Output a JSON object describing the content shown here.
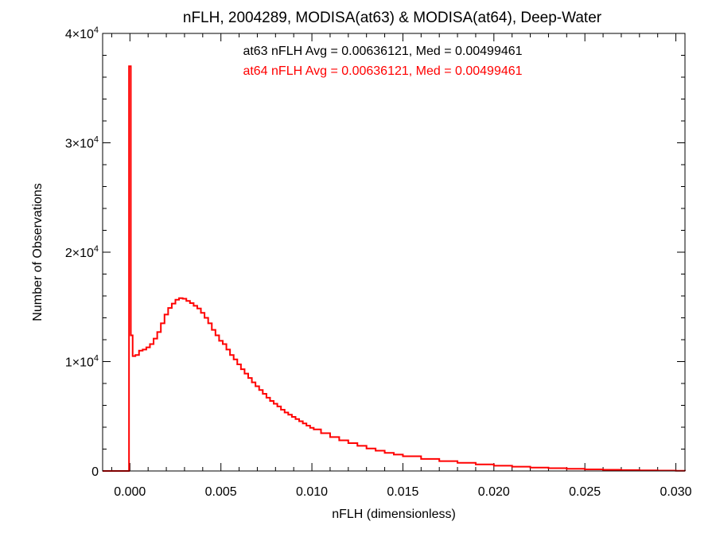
{
  "chart_data": {
    "type": "line",
    "title": "nFLH, 2004289, MODISA(at63) & MODISA(at64), Deep-Water",
    "xlabel": "nFLH (dimensionless)",
    "ylabel": "Number of Observations",
    "xlim": [
      -0.0015,
      0.0305
    ],
    "ylim": [
      0,
      40000
    ],
    "xticks": [
      {
        "value": 0.0,
        "label": "0.000"
      },
      {
        "value": 0.005,
        "label": "0.005"
      },
      {
        "value": 0.01,
        "label": "0.010"
      },
      {
        "value": 0.015,
        "label": "0.015"
      },
      {
        "value": 0.02,
        "label": "0.020"
      },
      {
        "value": 0.025,
        "label": "0.025"
      },
      {
        "value": 0.03,
        "label": "0.030"
      }
    ],
    "yticks": [
      {
        "value": 0,
        "base": "0",
        "exp": ""
      },
      {
        "value": 10000,
        "base": "1×10",
        "exp": "4"
      },
      {
        "value": 20000,
        "base": "2×10",
        "exp": "4"
      },
      {
        "value": 30000,
        "base": "3×10",
        "exp": "4"
      },
      {
        "value": 40000,
        "base": "4×10",
        "exp": "4"
      }
    ],
    "grid": false,
    "annotations": [
      {
        "text": "at63 nFLH Avg = 0.00636121, Med = 0.00499461",
        "color": "#000000"
      },
      {
        "text": "at64 nFLH Avg = 0.00636121, Med = 0.00499461",
        "color": "#ff0000"
      }
    ],
    "series": [
      {
        "color": "#ff0000",
        "x": [
          -0.0015,
          -0.0001,
          -5e-05,
          5e-05,
          0.00015,
          0.0003,
          0.0005,
          0.0007,
          0.0009,
          0.0011,
          0.0013,
          0.0015,
          0.0017,
          0.0019,
          0.0021,
          0.0023,
          0.0025,
          0.0027,
          0.0029,
          0.0031,
          0.0033,
          0.0035,
          0.0037,
          0.0039,
          0.0041,
          0.0043,
          0.0045,
          0.0047,
          0.0049,
          0.0051,
          0.0053,
          0.0055,
          0.0057,
          0.0059,
          0.0061,
          0.0063,
          0.0065,
          0.0067,
          0.0069,
          0.0071,
          0.0073,
          0.0075,
          0.0077,
          0.0079,
          0.0081,
          0.0083,
          0.0085,
          0.0087,
          0.0089,
          0.0091,
          0.0093,
          0.0095,
          0.0097,
          0.0099,
          0.0101,
          0.0105,
          0.011,
          0.0115,
          0.012,
          0.0125,
          0.013,
          0.0135,
          0.014,
          0.0145,
          0.015,
          0.016,
          0.017,
          0.018,
          0.019,
          0.02,
          0.021,
          0.022,
          0.023,
          0.024,
          0.025,
          0.026,
          0.027,
          0.028,
          0.029,
          0.03,
          0.0305
        ],
        "y": [
          0,
          0,
          37000,
          12400,
          10500,
          10600,
          11000,
          11100,
          11300,
          11600,
          12100,
          12700,
          13500,
          14300,
          14900,
          15300,
          15650,
          15800,
          15750,
          15550,
          15350,
          15100,
          14850,
          14450,
          14000,
          13500,
          12900,
          12400,
          11900,
          11600,
          11100,
          10600,
          10200,
          9750,
          9300,
          8900,
          8500,
          8100,
          7750,
          7400,
          7050,
          6700,
          6400,
          6150,
          5900,
          5600,
          5350,
          5150,
          4950,
          4750,
          4550,
          4350,
          4150,
          3950,
          3800,
          3450,
          3100,
          2800,
          2550,
          2300,
          2050,
          1850,
          1650,
          1500,
          1350,
          1100,
          900,
          750,
          600,
          480,
          390,
          310,
          250,
          200,
          150,
          110,
          80,
          55,
          35,
          20,
          10
        ]
      }
    ]
  }
}
